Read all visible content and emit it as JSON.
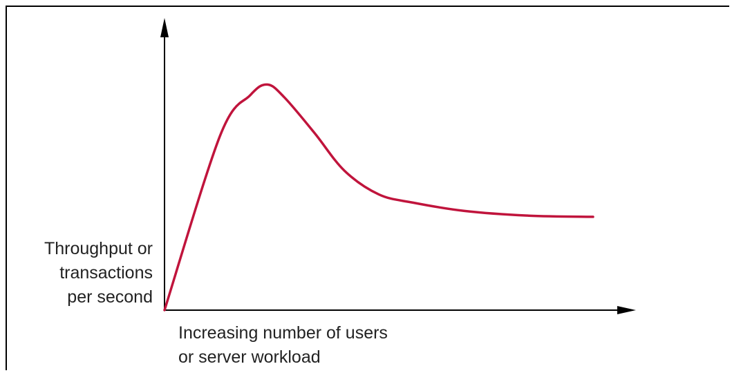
{
  "chart_data": {
    "type": "line",
    "title": "",
    "ylabel": "Throughput or\ntransactions\nper second",
    "xlabel": "Increasing number of users\nor server workload",
    "x_ticks_shown": false,
    "y_ticks_shown": false,
    "grid": false,
    "series": [
      {
        "color": "#c0143c",
        "x": [
          0,
          0.13,
          0.2,
          0.24,
          0.28,
          0.35,
          0.42,
          0.5,
          0.58,
          0.7,
          0.85,
          1.0
        ],
        "y": [
          0,
          0.74,
          0.91,
          0.955,
          0.9,
          0.75,
          0.59,
          0.49,
          0.455,
          0.42,
          0.4,
          0.395
        ]
      }
    ],
    "xlim": [
      0,
      1.05
    ],
    "ylim": [
      0,
      1.05
    ]
  },
  "colors": {
    "axis": "#000000",
    "curve": "#c0143c"
  }
}
